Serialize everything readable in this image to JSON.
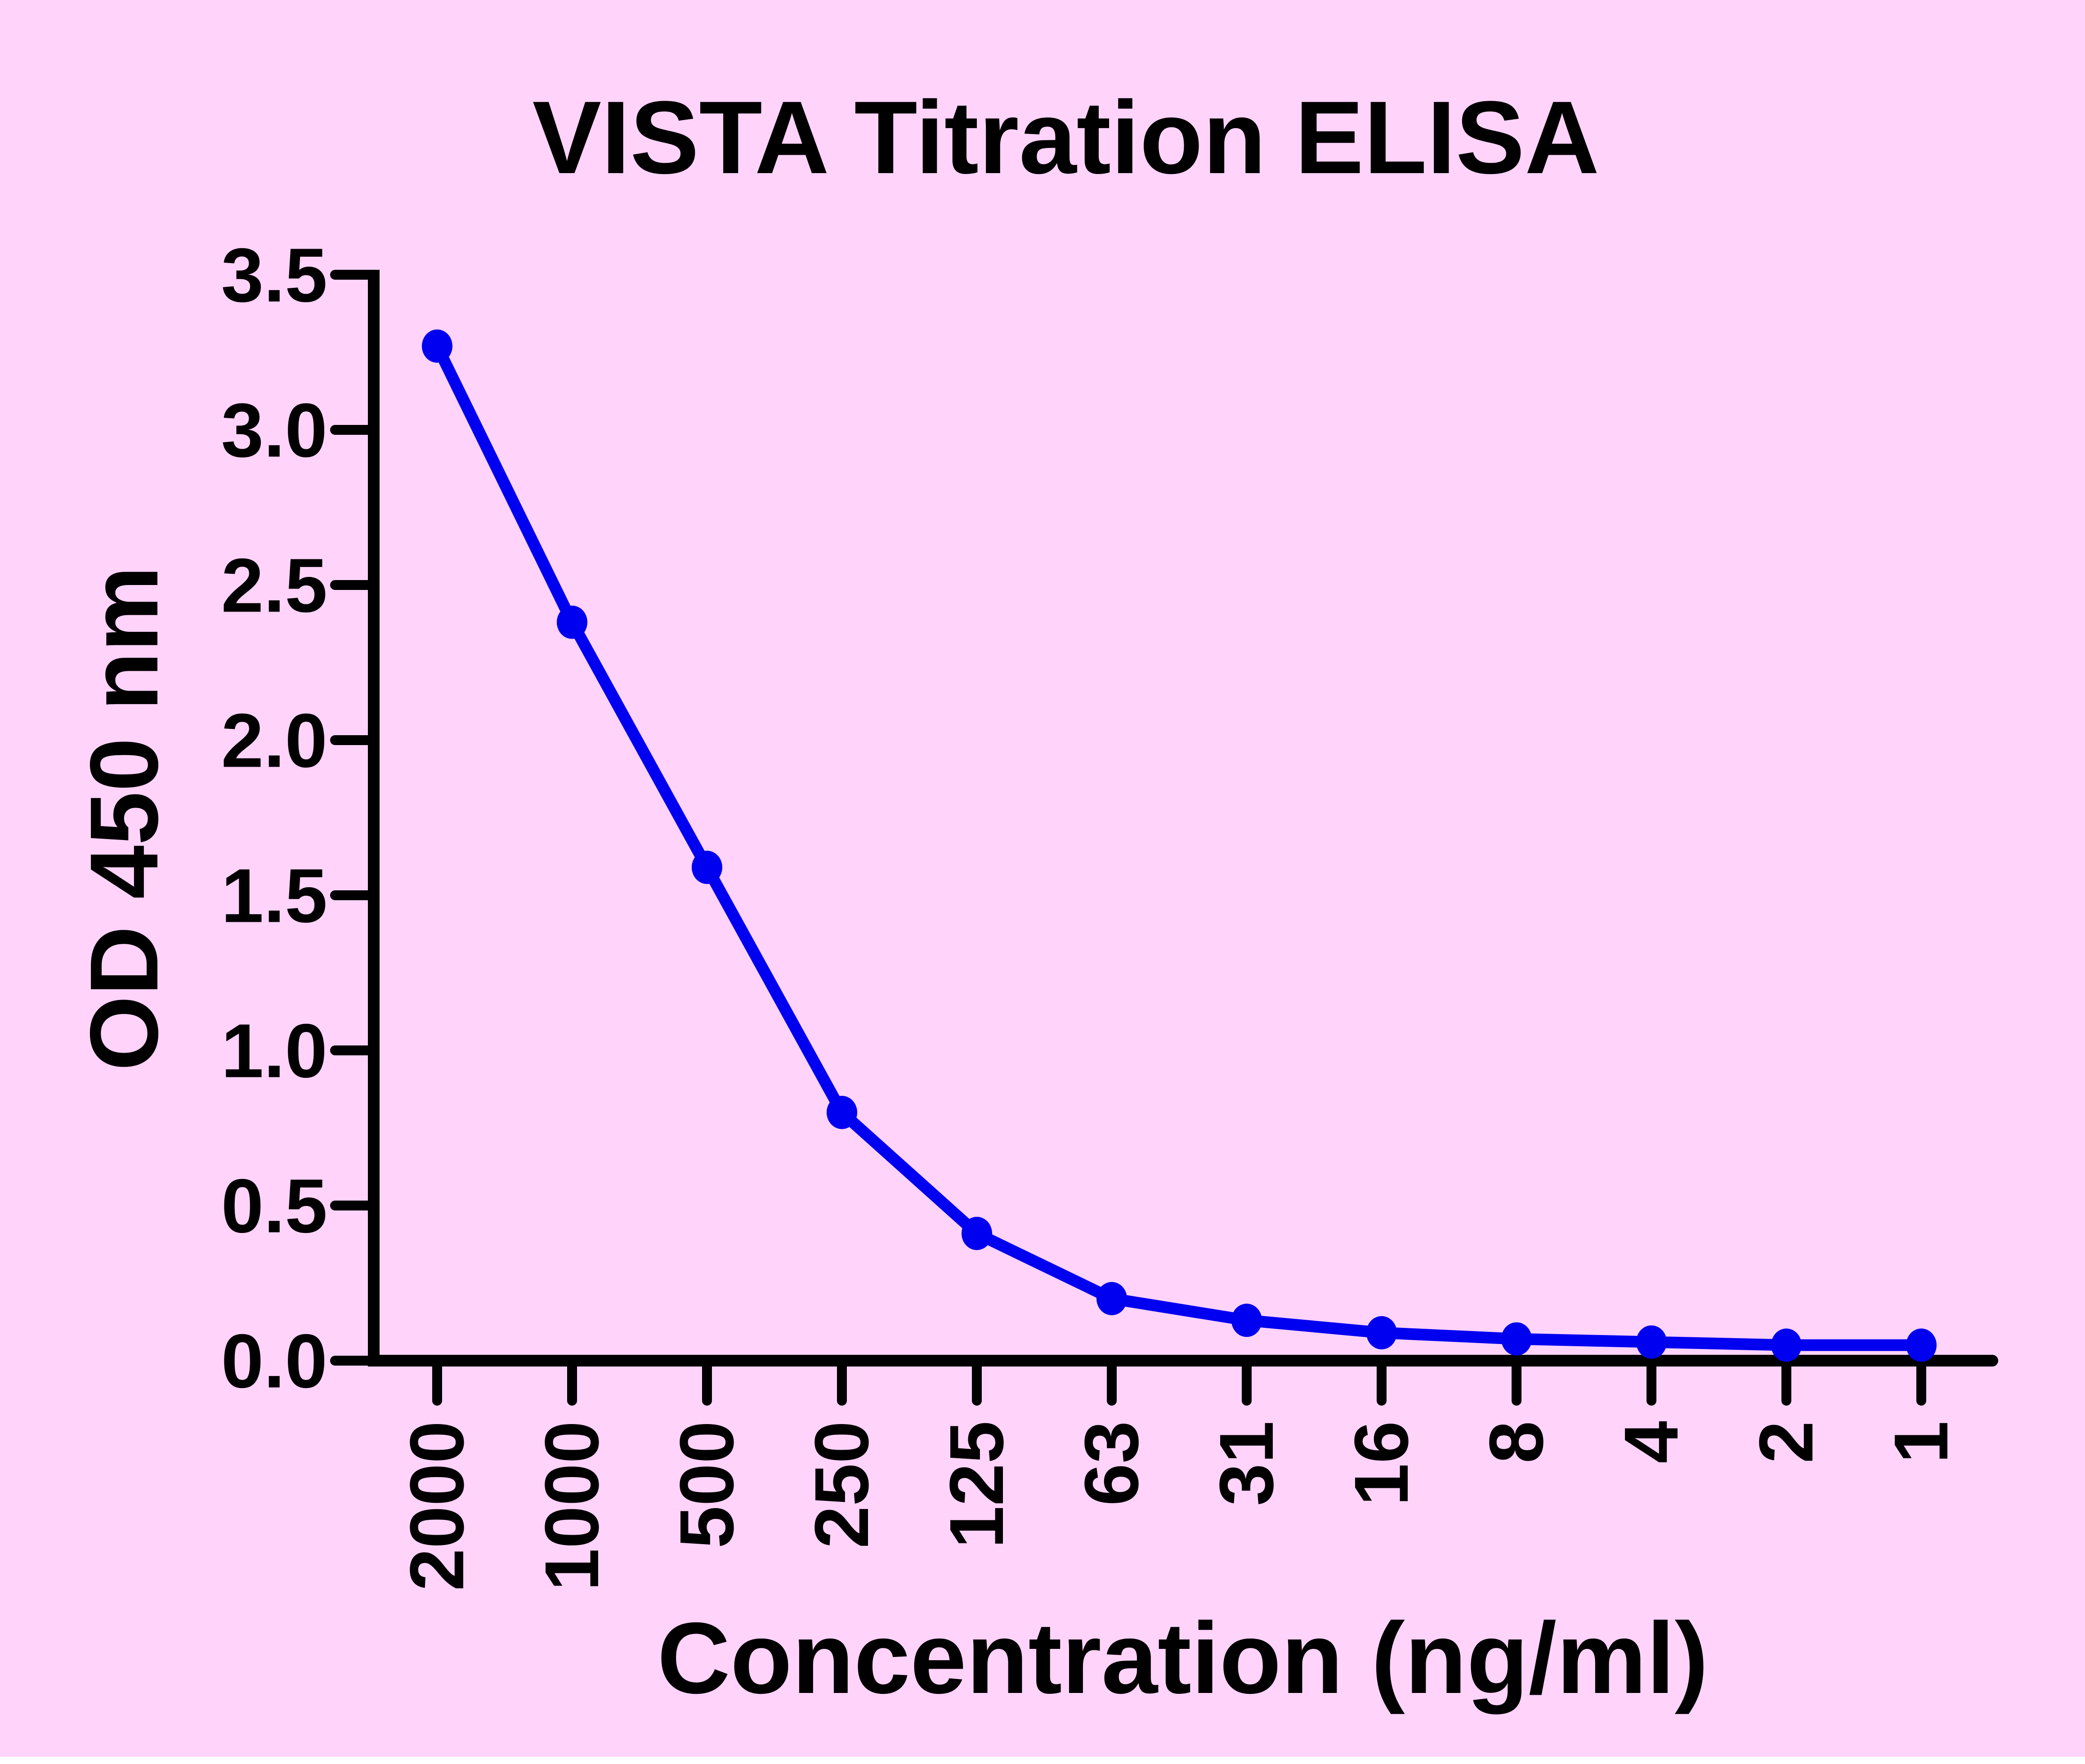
{
  "chart_data": {
    "type": "line",
    "title": "VISTA Titration ELISA",
    "xlabel": "Concentration (ng/ml)",
    "ylabel": "OD 450 nm",
    "categories": [
      "2000",
      "1000",
      "500",
      "250",
      "125",
      "63",
      "31",
      "16",
      "8",
      "4",
      "2",
      "1"
    ],
    "series": [
      {
        "name": "OD 450 nm",
        "values": [
          3.27,
          2.38,
          1.59,
          0.8,
          0.41,
          0.2,
          0.13,
          0.09,
          0.07,
          0.06,
          0.05,
          0.05
        ]
      }
    ],
    "ylim": [
      0.0,
      3.5
    ],
    "ytick_labels": [
      "0.0",
      "0.5",
      "1.0",
      "1.5",
      "2.0",
      "2.5",
      "3.0",
      "3.5"
    ],
    "xtick_label_rotation_deg": 90,
    "grid": false,
    "legend": "none",
    "marker": "filled-circle",
    "colors": {
      "background": "#FFD3FA",
      "series": "#0000F0",
      "axis": "#000000",
      "text": "#000000",
      "bottom_strip": "#FFFFFF"
    }
  }
}
